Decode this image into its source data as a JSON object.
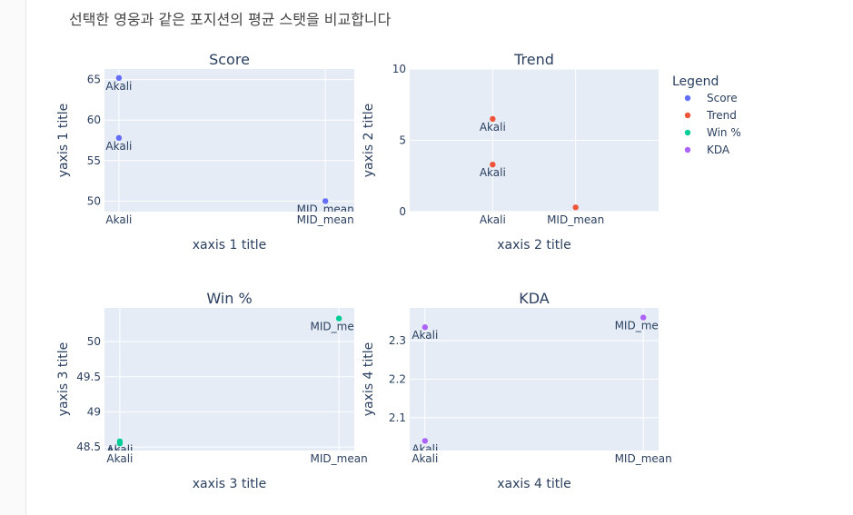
{
  "page": {
    "heading": "선택한 영웅과 같은 포지션의 평균 스탯을 비교합니다"
  },
  "chart_data": {
    "type": "scatter",
    "legend": {
      "title": "Legend",
      "placement": "right",
      "items": [
        {
          "name": "Score",
          "color": "#636efa"
        },
        {
          "name": "Trend",
          "color": "#ef553b"
        },
        {
          "name": "Win %",
          "color": "#00cc96"
        },
        {
          "name": "KDA",
          "color": "#ab63fa"
        }
      ]
    },
    "subplots": [
      {
        "title": "Score",
        "xlabel": "xaxis 1 title",
        "ylabel": "yaxis 1 title",
        "categories": [
          "Akali",
          "MID_mean"
        ],
        "xlim": [
          -0.07,
          1.14
        ],
        "ylim": [
          48.7,
          66.3
        ],
        "yticks": [
          50,
          55,
          60,
          65
        ],
        "grid": true,
        "series": [
          {
            "name": "Score",
            "color": "#636efa",
            "points": [
              {
                "x": "Akali",
                "y": 65.2,
                "label": "Akali"
              },
              {
                "x": "Akali",
                "y": 57.8,
                "label": "Akali"
              },
              {
                "x": "MID_mean",
                "y": 50.0,
                "label": "MID_mean"
              }
            ]
          }
        ]
      },
      {
        "title": "Trend",
        "xlabel": "xaxis 2 title",
        "ylabel": "yaxis 2 title",
        "categories": [
          "Akali",
          "MID_mean"
        ],
        "xlim": [
          -1,
          2
        ],
        "ylim": [
          0,
          10
        ],
        "yticks": [
          0,
          5,
          10
        ],
        "grid": true,
        "series": [
          {
            "name": "Trend",
            "color": "#ef553b",
            "points": [
              {
                "x": "Akali",
                "y": 6.5,
                "label": "Akali"
              },
              {
                "x": "Akali",
                "y": 3.3,
                "label": "Akali"
              },
              {
                "x": "MID_mean",
                "y": 0.3,
                "label": ""
              }
            ]
          }
        ]
      },
      {
        "title": "Win %",
        "xlabel": "xaxis 3 title",
        "ylabel": "yaxis 3 title",
        "categories": [
          "Akali",
          "MID_mean"
        ],
        "xlim": [
          -0.07,
          1.07
        ],
        "ylim": [
          48.45,
          50.48
        ],
        "yticks": [
          48.5,
          49,
          49.5,
          50
        ],
        "grid": true,
        "series": [
          {
            "name": "Win %",
            "color": "#00cc96",
            "points": [
              {
                "x": "Akali",
                "y": 48.58,
                "label": "Akali"
              },
              {
                "x": "Akali",
                "y": 48.55,
                "label": "Akali"
              },
              {
                "x": "MID_mean",
                "y": 50.33,
                "label": "MID_mean"
              }
            ]
          }
        ]
      },
      {
        "title": "KDA",
        "xlabel": "xaxis 4 title",
        "ylabel": "yaxis 4 title",
        "categories": [
          "Akali",
          "MID_mean"
        ],
        "xlim": [
          -0.07,
          1.07
        ],
        "ylim": [
          2.015,
          2.385
        ],
        "yticks": [
          2.1,
          2.2,
          2.3
        ],
        "grid": true,
        "series": [
          {
            "name": "KDA",
            "color": "#ab63fa",
            "points": [
              {
                "x": "Akali",
                "y": 2.335,
                "label": "Akali"
              },
              {
                "x": "Akali",
                "y": 2.04,
                "label": "Akali"
              },
              {
                "x": "MID_mean",
                "y": 2.36,
                "label": "MID_mean"
              }
            ]
          }
        ]
      }
    ]
  }
}
